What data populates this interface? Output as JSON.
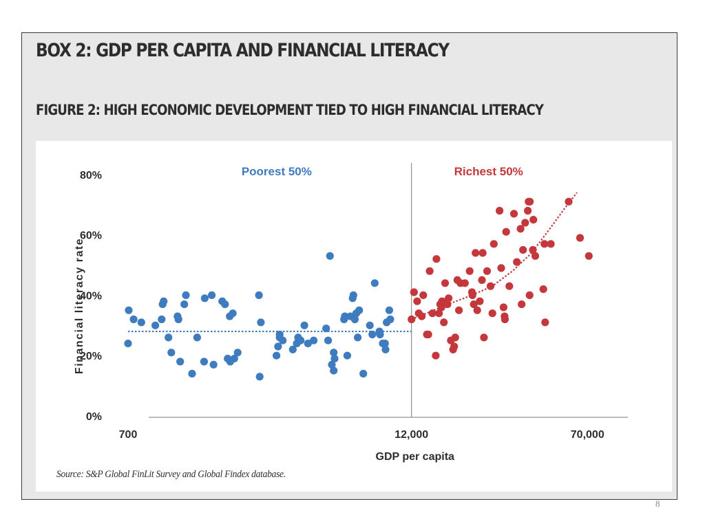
{
  "box_title": "BOX 2: GDP PER CAPITA AND FINANCIAL LITERACY",
  "figure_title": "FIGURE 2: HIGH ECONOMIC DEVELOPMENT TIED TO HIGH FINANCIAL LITERACY",
  "source": "Source: S&P Global FinLit Survey and Global Findex database.",
  "page_number": "8",
  "colors": {
    "poorest": "#3e7bbf",
    "richest": "#c4373b",
    "axis": "#777777",
    "text": "#2d2d2d"
  },
  "chart_data": {
    "type": "scatter",
    "xlabel": "GDP per capita",
    "ylabel": "Financial literacy rate",
    "x_scale": "log",
    "x_ticks": [
      {
        "value": 700,
        "label": "700"
      },
      {
        "value": 12000,
        "label": "12,000"
      },
      {
        "value": 70000,
        "label": "70,000"
      }
    ],
    "y_ticks": [
      {
        "value": 0,
        "label": "0%"
      },
      {
        "value": 20,
        "label": "20%"
      },
      {
        "value": 40,
        "label": "40%"
      },
      {
        "value": 60,
        "label": "60%"
      },
      {
        "value": 80,
        "label": "80%"
      }
    ],
    "xlim": [
      700,
      105000
    ],
    "ylim": [
      0,
      82
    ],
    "divider": {
      "x": 12000
    },
    "groups": [
      {
        "label": "Poorest 50%",
        "trend": {
          "type": "flat",
          "from": 700,
          "to": 12000,
          "y": 28
        },
        "points": [
          [
            700,
            24
          ],
          [
            705,
            35
          ],
          [
            740,
            32
          ],
          [
            800,
            31
          ],
          [
            920,
            30
          ],
          [
            980,
            32
          ],
          [
            990,
            37
          ],
          [
            1000,
            38
          ],
          [
            1050,
            26
          ],
          [
            1080,
            21
          ],
          [
            1150,
            33
          ],
          [
            1160,
            32
          ],
          [
            1180,
            18
          ],
          [
            1230,
            37
          ],
          [
            1250,
            40
          ],
          [
            1330,
            14
          ],
          [
            1400,
            26
          ],
          [
            1500,
            18
          ],
          [
            1510,
            39
          ],
          [
            1620,
            40
          ],
          [
            1650,
            17
          ],
          [
            1800,
            38
          ],
          [
            1850,
            37
          ],
          [
            1900,
            19
          ],
          [
            1940,
            33
          ],
          [
            1950,
            18
          ],
          [
            2000,
            34
          ],
          [
            2030,
            19
          ],
          [
            2100,
            21
          ],
          [
            2600,
            40
          ],
          [
            2620,
            13
          ],
          [
            2650,
            31
          ],
          [
            3100,
            20
          ],
          [
            3150,
            23
          ],
          [
            3200,
            27
          ],
          [
            3200,
            26
          ],
          [
            3300,
            25
          ],
          [
            3650,
            22
          ],
          [
            3800,
            24
          ],
          [
            3850,
            26
          ],
          [
            3950,
            25
          ],
          [
            4100,
            30
          ],
          [
            4250,
            24
          ],
          [
            4500,
            25
          ],
          [
            5100,
            29
          ],
          [
            5200,
            25
          ],
          [
            5300,
            53
          ],
          [
            5400,
            17
          ],
          [
            5500,
            15
          ],
          [
            5500,
            21
          ],
          [
            5550,
            19
          ],
          [
            6100,
            32
          ],
          [
            6150,
            33
          ],
          [
            6300,
            20
          ],
          [
            6500,
            33
          ],
          [
            6650,
            39
          ],
          [
            6700,
            40
          ],
          [
            6800,
            32
          ],
          [
            6900,
            34
          ],
          [
            7000,
            26
          ],
          [
            7100,
            35
          ],
          [
            7400,
            14
          ],
          [
            7900,
            30
          ],
          [
            8100,
            27
          ],
          [
            8300,
            44
          ],
          [
            8700,
            28
          ],
          [
            8750,
            27
          ],
          [
            9000,
            24
          ],
          [
            9200,
            24
          ],
          [
            9250,
            22
          ],
          [
            9350,
            31
          ],
          [
            9600,
            35
          ],
          [
            9700,
            32
          ]
        ]
      },
      {
        "label": "Richest 50%",
        "trend": {
          "type": "curve",
          "points": [
            [
              12000,
              32
            ],
            [
              15000,
              35
            ],
            [
              18000,
              37.5
            ],
            [
              22000,
              40
            ],
            [
              27000,
              43
            ],
            [
              33000,
              48
            ],
            [
              40000,
              54
            ],
            [
              48000,
              62
            ],
            [
              56000,
              69
            ],
            [
              63000,
              74
            ]
          ]
        },
        "points": [
          [
            12000,
            32
          ],
          [
            12300,
            41
          ],
          [
            12700,
            38
          ],
          [
            12900,
            34
          ],
          [
            13300,
            33
          ],
          [
            13500,
            40
          ],
          [
            14000,
            27
          ],
          [
            14200,
            27
          ],
          [
            14400,
            48
          ],
          [
            14800,
            34
          ],
          [
            15300,
            20
          ],
          [
            15400,
            52
          ],
          [
            15800,
            34
          ],
          [
            16000,
            37
          ],
          [
            16200,
            36
          ],
          [
            16300,
            38
          ],
          [
            16600,
            31
          ],
          [
            16800,
            44
          ],
          [
            17200,
            37
          ],
          [
            17400,
            39
          ],
          [
            17800,
            25
          ],
          [
            18200,
            22
          ],
          [
            18400,
            23
          ],
          [
            18600,
            26
          ],
          [
            19000,
            45
          ],
          [
            19300,
            35
          ],
          [
            19600,
            44
          ],
          [
            20500,
            44
          ],
          [
            21500,
            48
          ],
          [
            22000,
            41
          ],
          [
            22100,
            40
          ],
          [
            22400,
            37
          ],
          [
            22800,
            54
          ],
          [
            23200,
            35
          ],
          [
            23800,
            38
          ],
          [
            24300,
            45
          ],
          [
            24500,
            54
          ],
          [
            24800,
            26
          ],
          [
            25600,
            48
          ],
          [
            26500,
            43
          ],
          [
            27000,
            34
          ],
          [
            27400,
            57
          ],
          [
            29000,
            68
          ],
          [
            29500,
            49
          ],
          [
            30200,
            36
          ],
          [
            30500,
            33
          ],
          [
            30600,
            32
          ],
          [
            31000,
            61
          ],
          [
            32000,
            43
          ],
          [
            33500,
            67
          ],
          [
            34500,
            51
          ],
          [
            35800,
            62
          ],
          [
            36200,
            37
          ],
          [
            36700,
            55
          ],
          [
            37500,
            64
          ],
          [
            38500,
            68
          ],
          [
            38800,
            71
          ],
          [
            39200,
            40
          ],
          [
            39300,
            71
          ],
          [
            40500,
            55
          ],
          [
            40700,
            65
          ],
          [
            41500,
            53
          ],
          [
            45000,
            42
          ],
          [
            45500,
            57
          ],
          [
            45800,
            31
          ],
          [
            48500,
            57
          ],
          [
            58000,
            71
          ],
          [
            65000,
            59
          ],
          [
            71000,
            53
          ]
        ]
      }
    ]
  }
}
